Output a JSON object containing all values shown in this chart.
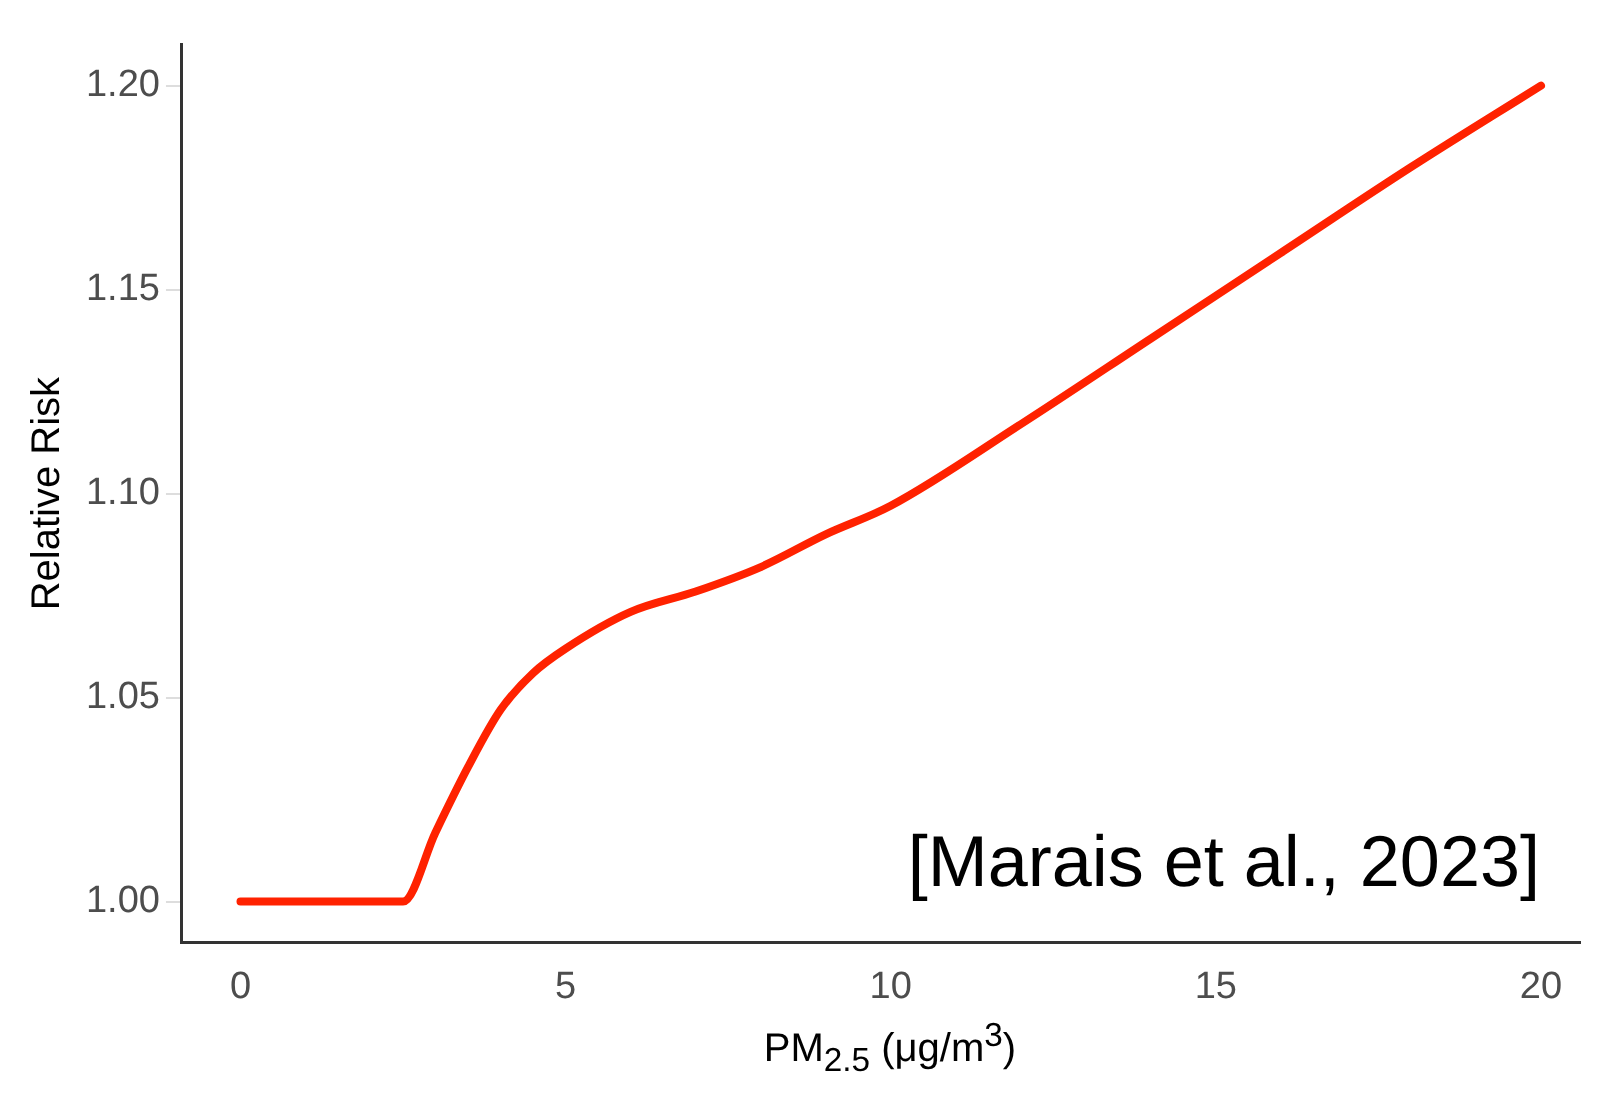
{
  "chart_data": {
    "type": "line",
    "xlabel": "PM$_{2.5}$ (μg/m$^{3}$)",
    "ylabel": "Relative Risk",
    "annotations": [
      "[Marais et al., 2023]"
    ],
    "x": [
      0,
      1,
      2,
      2.5,
      3,
      3.5,
      4,
      4.5,
      5,
      6,
      7,
      8,
      9,
      10,
      12,
      14,
      16,
      18,
      20
    ],
    "series": [
      {
        "color": "#ff2200",
        "values": [
          1.0,
          1.0,
          1.0,
          1.0,
          1.017,
          1.033,
          1.047,
          1.056,
          1.062,
          1.071,
          1.076,
          1.082,
          1.09,
          1.097,
          1.117,
          1.138,
          1.159,
          1.18,
          1.2
        ]
      }
    ],
    "xlim": [
      -0.9,
      20.6
    ],
    "xticks": [
      0,
      5,
      10,
      15,
      20
    ],
    "ylim": [
      0.99,
      1.21
    ],
    "yticks": [
      {
        "value": 1.0,
        "label": "1.00"
      },
      {
        "value": 1.05,
        "label": "1.05"
      },
      {
        "value": 1.1,
        "label": "1.10"
      },
      {
        "value": 1.15,
        "label": "1.15"
      },
      {
        "value": 1.2,
        "label": "1.20"
      }
    ],
    "grid": false,
    "legend": false,
    "marker": "none",
    "line_style": "solid"
  }
}
